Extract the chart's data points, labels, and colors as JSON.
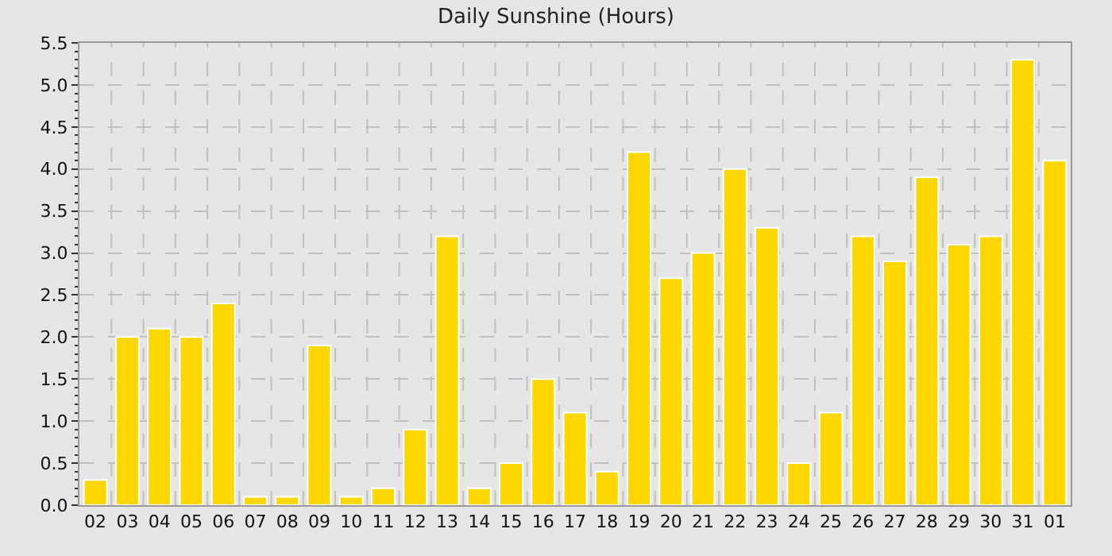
{
  "chart_data": {
    "type": "bar",
    "title": "Daily Sunshine (Hours)",
    "categories": [
      "02",
      "03",
      "04",
      "05",
      "06",
      "07",
      "08",
      "09",
      "10",
      "11",
      "12",
      "13",
      "14",
      "15",
      "16",
      "17",
      "18",
      "19",
      "20",
      "21",
      "22",
      "23",
      "24",
      "25",
      "26",
      "27",
      "28",
      "29",
      "30",
      "31",
      "01"
    ],
    "values": [
      0.3,
      2.0,
      2.1,
      2.0,
      2.4,
      0.1,
      0.1,
      1.9,
      0.1,
      0.2,
      0.9,
      3.2,
      0.2,
      0.5,
      1.5,
      1.1,
      0.4,
      4.2,
      2.7,
      3.0,
      4.0,
      3.3,
      0.5,
      1.1,
      3.2,
      2.9,
      3.9,
      3.1,
      3.2,
      5.3,
      4.1
    ],
    "color": "#ffd700",
    "ylim": [
      0,
      5.5
    ],
    "yticks": [
      {
        "value": 0,
        "label": "0.0"
      },
      {
        "value": 0.5,
        "label": "0.5"
      },
      {
        "value": 1,
        "label": "1.0"
      },
      {
        "value": 1.5,
        "label": "1.5"
      },
      {
        "value": 2,
        "label": "2.0"
      },
      {
        "value": 2.5,
        "label": "2.5"
      },
      {
        "value": 3,
        "label": "3.0"
      },
      {
        "value": 3.5,
        "label": "3.5"
      },
      {
        "value": 4,
        "label": "4.0"
      },
      {
        "value": 4.5,
        "label": "4.5"
      },
      {
        "value": 5,
        "label": "5.0"
      },
      {
        "value": 5.5,
        "label": "5.5"
      }
    ],
    "grid": true
  }
}
